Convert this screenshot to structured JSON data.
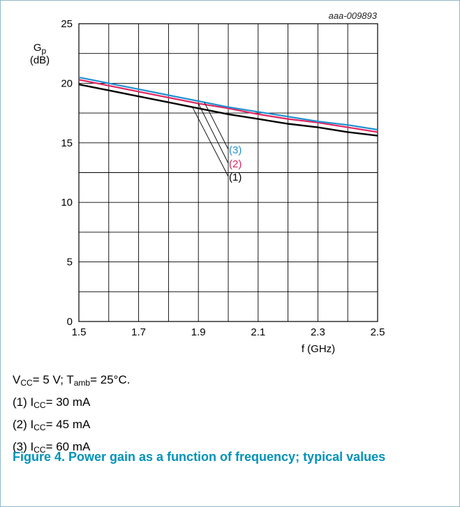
{
  "figure_id": "aaa-009893",
  "chart_data": {
    "type": "line",
    "ylabel_main": "G",
    "ylabel_sub": "p",
    "ylabel_unit": "(dB)",
    "xlabel": "f (GHz)",
    "xlim": [
      1.5,
      2.5
    ],
    "ylim": [
      0,
      25
    ],
    "x_ticks": [
      "1.5",
      "1.7",
      "1.9",
      "2.1",
      "2.3",
      "2.5"
    ],
    "x_tick_values": [
      1.5,
      1.7,
      1.9,
      2.1,
      2.3,
      2.5
    ],
    "y_ticks": [
      "0",
      "5",
      "10",
      "15",
      "20",
      "25"
    ],
    "y_tick_values": [
      0,
      5,
      10,
      15,
      20,
      25
    ],
    "x_minor_step": 0.1,
    "y_minor_step": 2.5,
    "grid": true,
    "x": [
      1.5,
      1.6,
      1.7,
      1.8,
      1.9,
      2.0,
      2.1,
      2.2,
      2.3,
      2.4,
      2.5
    ],
    "series": [
      {
        "name": "(1)",
        "color": "#000000",
        "values": [
          19.9,
          19.4,
          18.9,
          18.4,
          17.9,
          17.4,
          17.0,
          16.6,
          16.3,
          15.9,
          15.6
        ]
      },
      {
        "name": "(2)",
        "color": "#e0245e",
        "values": [
          20.3,
          19.8,
          19.3,
          18.8,
          18.3,
          17.9,
          17.4,
          17.0,
          16.7,
          16.3,
          15.9
        ]
      },
      {
        "name": "(3)",
        "color": "#1e8fd0",
        "values": [
          20.5,
          20.0,
          19.5,
          19.0,
          18.5,
          18.0,
          17.6,
          17.2,
          16.8,
          16.5,
          16.1
        ]
      }
    ],
    "series_labels_order": [
      "(3)",
      "(2)",
      "(1)"
    ],
    "leader_anchor_x": [
      1.88,
      1.9,
      1.92
    ]
  },
  "notes": {
    "conditions": {
      "vcc_pre": "V",
      "vcc_sub": "CC",
      "vcc_post": "= 5 V; T",
      "tamb_sub": "amb",
      "tamb_post": "= 25°C."
    },
    "items": [
      {
        "prefix": "(1) I",
        "sub": "CC",
        "suffix": "= 30 mA"
      },
      {
        "prefix": "(2) I",
        "sub": "CC",
        "suffix": "= 45 mA"
      },
      {
        "prefix": "(3) I",
        "sub": "CC",
        "suffix": "= 60 mA"
      }
    ]
  },
  "caption": "Figure 4.  Power gain as a function of frequency; typical values"
}
